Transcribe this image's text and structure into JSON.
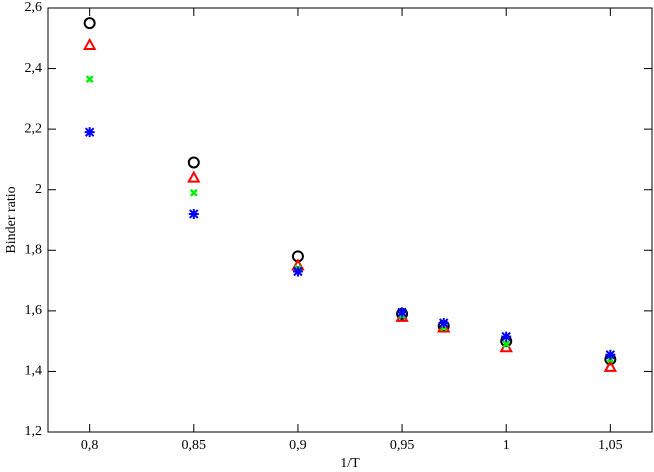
{
  "chart_data": {
    "type": "scatter",
    "x_label": "1/T",
    "y_label": "Binder ratio",
    "x": [
      0.8,
      0.85,
      0.9,
      0.95,
      0.97,
      1,
      1.05
    ],
    "series": [
      {
        "color": "#000000",
        "marker": "circle",
        "values": [
          2.55,
          2.09,
          1.78,
          1.59,
          1.55,
          1.5,
          1.44
        ]
      },
      {
        "color": "#ff0000",
        "marker": "triangle",
        "values": [
          2.478,
          2.04,
          1.75,
          1.58,
          1.545,
          1.48,
          1.415
        ]
      },
      {
        "color": "#00ee00",
        "marker": "x",
        "values": [
          2.365,
          1.99,
          1.74,
          1.585,
          1.545,
          1.49,
          1.44
        ]
      },
      {
        "color": "#0000ff",
        "marker": "asterisk",
        "values": [
          2.19,
          1.92,
          1.73,
          1.595,
          1.56,
          1.515,
          1.455
        ]
      }
    ],
    "xlim": [
      0.78,
      1.07
    ],
    "xticks": [
      {
        "value": 0.8,
        "label": "0,8"
      },
      {
        "value": 0.85,
        "label": "0,85"
      },
      {
        "value": 0.9,
        "label": "0,9"
      },
      {
        "value": 0.95,
        "label": "0,95"
      },
      1,
      {
        "value": 1.05,
        "label": "1,05"
      }
    ],
    "ylim": [
      1.2,
      2.6
    ],
    "yticks": [
      {
        "value": 1.2,
        "label": "1,2"
      },
      {
        "value": 1.4,
        "label": "1,4"
      },
      {
        "value": 1.6,
        "label": "1,6"
      },
      {
        "value": 1.8,
        "label": "1,8"
      },
      2,
      {
        "value": 2.2,
        "label": "2,2"
      },
      {
        "value": 2.4,
        "label": "2,4"
      },
      {
        "value": 2.6,
        "label": "2,6"
      }
    ],
    "grid": false
  }
}
